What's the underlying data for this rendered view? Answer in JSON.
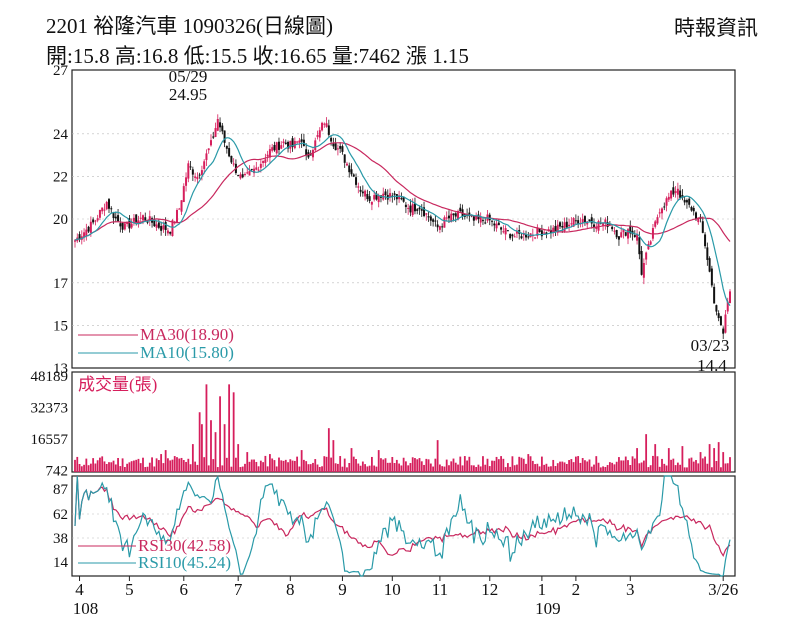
{
  "header": {
    "title": "2201  裕隆汽車 1090326(日線圖)",
    "brand": "時報資訊",
    "stats": "開:15.8 高:16.8 低:15.5 收:16.65 量:7462 漲 1.15"
  },
  "colors": {
    "up": "#d61e5c",
    "down": "#111111",
    "ma30": "#c8285e",
    "ma10": "#2a9aa8",
    "rsi30": "#c8285e",
    "rsi10": "#2a9aa8",
    "volume": "#d61e5c",
    "frame": "#222222",
    "grid": "#bbbbbb"
  },
  "chart_data": [
    {
      "type": "candlestick",
      "name": "price",
      "ylim": [
        13,
        27
      ],
      "yticks": [
        13,
        15,
        17,
        20,
        22,
        24,
        27
      ],
      "grid": true,
      "legend": [
        {
          "key": "ma30",
          "text": "MA30(18.90)"
        },
        {
          "key": "ma10",
          "text": "MA10(15.80)"
        }
      ],
      "annotations": [
        {
          "id": "high",
          "date": "05/29",
          "value": "24.95"
        },
        {
          "id": "low",
          "date": "03/23",
          "value": "14.4"
        }
      ],
      "keypoints": [
        [
          0,
          19.0
        ],
        [
          8,
          19.8
        ],
        [
          14,
          20.8
        ],
        [
          18,
          20.0
        ],
        [
          22,
          19.6
        ],
        [
          30,
          20.1
        ],
        [
          38,
          19.6
        ],
        [
          42,
          19.5
        ],
        [
          46,
          20.5
        ],
        [
          50,
          22.5
        ],
        [
          54,
          22.0
        ],
        [
          60,
          23.5
        ],
        [
          63,
          24.7
        ],
        [
          66,
          23.6
        ],
        [
          70,
          22.5
        ],
        [
          74,
          21.8
        ],
        [
          80,
          22.4
        ],
        [
          86,
          23.2
        ],
        [
          92,
          23.6
        ],
        [
          96,
          23.4
        ],
        [
          100,
          23.8
        ],
        [
          102,
          22.8
        ],
        [
          106,
          23.6
        ],
        [
          110,
          24.6
        ],
        [
          114,
          23.6
        ],
        [
          118,
          23.0
        ],
        [
          122,
          22.2
        ],
        [
          126,
          21.4
        ],
        [
          130,
          21.0
        ],
        [
          136,
          21.2
        ],
        [
          142,
          21.0
        ],
        [
          148,
          20.5
        ],
        [
          152,
          20.6
        ],
        [
          156,
          20.1
        ],
        [
          160,
          19.6
        ],
        [
          164,
          20.0
        ],
        [
          170,
          20.2
        ],
        [
          176,
          19.9
        ],
        [
          182,
          20.0
        ],
        [
          188,
          19.5
        ],
        [
          194,
          19.2
        ],
        [
          200,
          19.3
        ],
        [
          206,
          19.4
        ],
        [
          212,
          19.5
        ],
        [
          218,
          19.8
        ],
        [
          224,
          20.0
        ],
        [
          230,
          19.8
        ],
        [
          236,
          19.8
        ],
        [
          240,
          19.2
        ],
        [
          244,
          19.5
        ],
        [
          248,
          19.2
        ],
        [
          250,
          17.5
        ],
        [
          254,
          19.0
        ],
        [
          258,
          20.5
        ],
        [
          262,
          21.0
        ],
        [
          266,
          21.5
        ],
        [
          268,
          20.8
        ],
        [
          272,
          20.5
        ],
        [
          276,
          19.8
        ],
        [
          278,
          18.8
        ],
        [
          280,
          17.5
        ],
        [
          282,
          16.2
        ],
        [
          284,
          15.2
        ],
        [
          286,
          14.6
        ],
        [
          287,
          15.5
        ],
        [
          289,
          16.65
        ]
      ],
      "n": 290,
      "seed": 7
    },
    {
      "type": "bar",
      "name": "volume",
      "series_name": "成交量(張)",
      "ylim": [
        0,
        48189
      ],
      "yticks": [
        742,
        16557,
        32373,
        48189
      ],
      "spikes": [
        [
          38,
          9000
        ],
        [
          40,
          11000
        ],
        [
          44,
          8000
        ],
        [
          52,
          14000
        ],
        [
          55,
          30000
        ],
        [
          56,
          24000
        ],
        [
          58,
          44000
        ],
        [
          60,
          26000
        ],
        [
          62,
          20000
        ],
        [
          64,
          38000
        ],
        [
          66,
          24000
        ],
        [
          68,
          44000
        ],
        [
          70,
          40000
        ],
        [
          72,
          14000
        ],
        [
          76,
          10000
        ],
        [
          86,
          9000
        ],
        [
          100,
          11000
        ],
        [
          112,
          22000
        ],
        [
          114,
          16000
        ],
        [
          122,
          12000
        ],
        [
          134,
          11000
        ],
        [
          150,
          7000
        ],
        [
          160,
          16000
        ],
        [
          172,
          8000
        ],
        [
          200,
          9000
        ],
        [
          222,
          8000
        ],
        [
          248,
          12000
        ],
        [
          252,
          19000
        ],
        [
          256,
          14000
        ],
        [
          262,
          12000
        ],
        [
          268,
          13000
        ],
        [
          276,
          10000
        ],
        [
          280,
          14000
        ],
        [
          282,
          12000
        ],
        [
          284,
          15000
        ],
        [
          286,
          10000
        ],
        [
          289,
          7462
        ]
      ],
      "base": 6500,
      "seed": 11
    },
    {
      "type": "line",
      "name": "rsi",
      "ylim": [
        0,
        100
      ],
      "yticks": [
        14,
        38,
        62,
        87
      ],
      "legend": [
        {
          "key": "rsi30",
          "text": "RSI30(42.58)"
        },
        {
          "key": "rsi10",
          "text": "RSI10(45.24)"
        }
      ]
    }
  ],
  "x_axis": {
    "labels": [
      "4",
      "5",
      "6",
      "7",
      "8",
      "9",
      "10",
      "11",
      "12",
      "1",
      "2",
      "3",
      "3/26"
    ],
    "label_index": [
      2,
      24,
      48,
      72,
      95,
      118,
      140,
      161,
      183,
      206,
      221,
      245,
      286
    ],
    "years": [
      {
        "text": "108",
        "index": 2
      },
      {
        "text": "109",
        "index": 206
      }
    ]
  }
}
